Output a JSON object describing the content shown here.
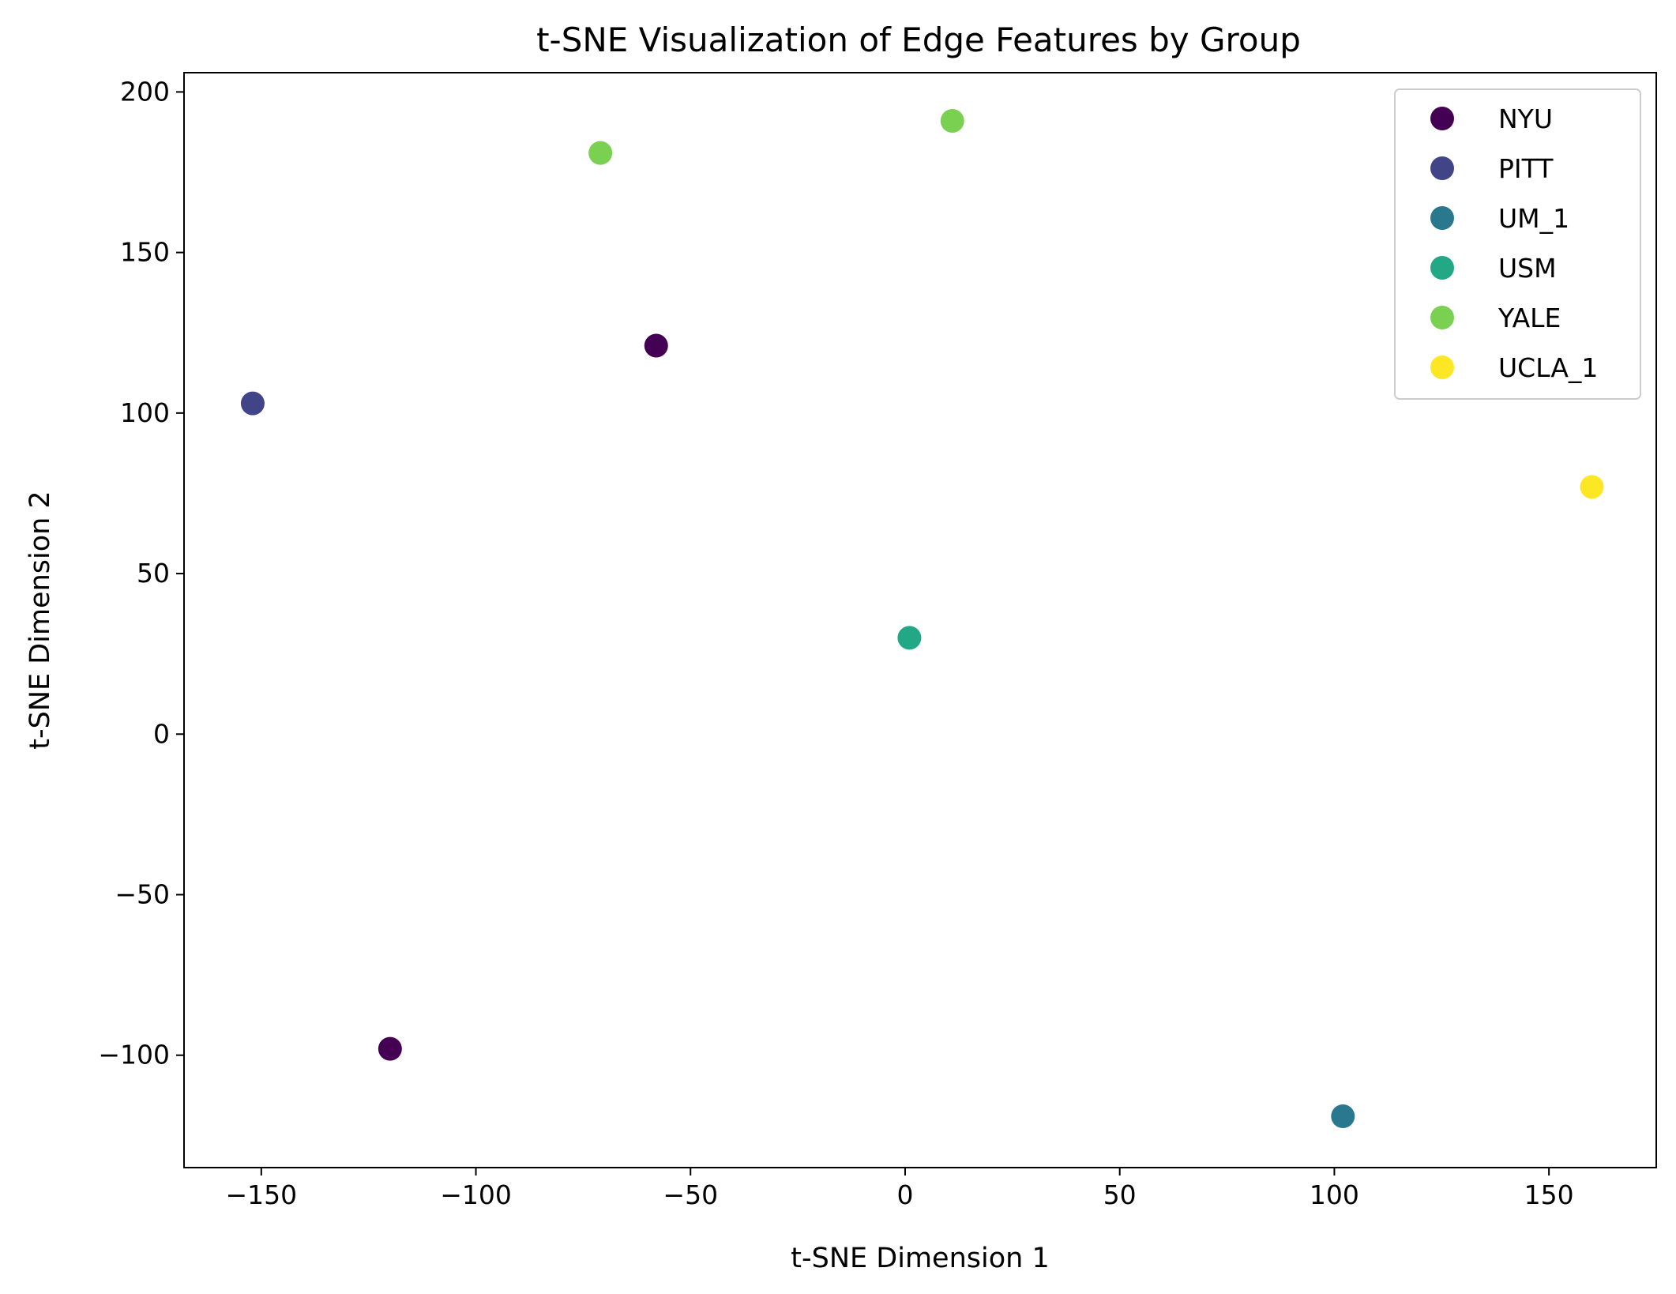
{
  "chart_data": {
    "type": "scatter",
    "title": "t-SNE Visualization of Edge Features by Group",
    "xlabel": "t-SNE Dimension 1",
    "ylabel": "t-SNE Dimension 2",
    "xlim": [
      -168,
      175
    ],
    "ylim": [
      -135,
      206
    ],
    "xticks": [
      -150,
      -100,
      -50,
      0,
      50,
      100,
      150
    ],
    "xtick_labels": [
      "−150",
      "−100",
      "−50",
      "0",
      "50",
      "100",
      "150"
    ],
    "yticks": [
      -100,
      -50,
      0,
      50,
      100,
      150,
      200
    ],
    "ytick_labels": [
      "−100",
      "−50",
      "0",
      "50",
      "100",
      "150",
      "200"
    ],
    "grid": false,
    "legend_position": "top-right",
    "series": [
      {
        "name": "NYU",
        "color": "#440154",
        "points": [
          [
            -58,
            121
          ],
          [
            -120,
            -98
          ]
        ]
      },
      {
        "name": "PITT",
        "color": "#414487",
        "points": [
          [
            -152,
            103
          ]
        ]
      },
      {
        "name": "UM_1",
        "color": "#2a788e",
        "points": [
          [
            102,
            -119
          ]
        ]
      },
      {
        "name": "USM",
        "color": "#22a884",
        "points": [
          [
            1,
            30
          ]
        ]
      },
      {
        "name": "YALE",
        "color": "#7ad151",
        "points": [
          [
            -71,
            181
          ],
          [
            11,
            191
          ]
        ]
      },
      {
        "name": "UCLA_1",
        "color": "#fde725",
        "points": [
          [
            160,
            77
          ]
        ]
      }
    ]
  }
}
